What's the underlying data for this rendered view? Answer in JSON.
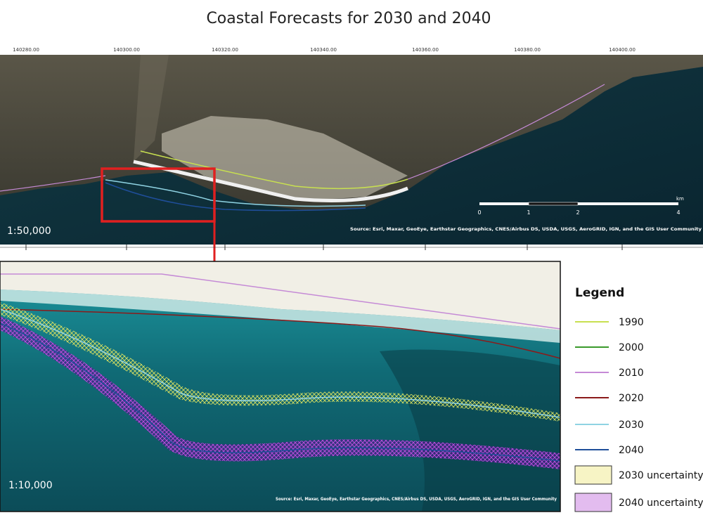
{
  "title": "Coastal Forecasts for 2030 and 2040",
  "overview_map": {
    "coordinate_labels": [
      "140280.00",
      "140300.00",
      "140320.00",
      "140340.00",
      "140360.00",
      "140380.00",
      "140400.00"
    ],
    "scale": "1:50,000",
    "scale_bar": {
      "labels": [
        "0",
        "1",
        "2",
        "4"
      ],
      "unit": "km"
    },
    "attribution": "Source: Esri, Maxar, GeoEye, Earthstar Geographics, CNES/Airbus DS, USDA, USGS, AeroGRID, IGN, and the GIS User Community"
  },
  "detail_map": {
    "scale": "1:10,000",
    "attribution": "Source: Esri, Maxar, GeoEye, Earthstar Geographics, CNES/Airbus DS, USDA, USGS, AeroGRID, IGN, and the GIS User Community"
  },
  "legend": {
    "title": "Legend",
    "items": [
      {
        "label": "1990",
        "color": "#c8e050",
        "symbol": "line"
      },
      {
        "label": "2000",
        "color": "#3a9a2a",
        "symbol": "line"
      },
      {
        "label": "2010",
        "color": "#c58ad6",
        "symbol": "line"
      },
      {
        "label": "2020",
        "color": "#8b1a1a",
        "symbol": "line"
      },
      {
        "label": "2030",
        "color": "#8fd3e3",
        "symbol": "line"
      },
      {
        "label": "2040",
        "color": "#1f4e9a",
        "symbol": "line"
      },
      {
        "label": "2030 uncertainty",
        "color": "#e8e05a",
        "symbol": "hatch"
      },
      {
        "label": "2040 uncertainty",
        "color": "#b040d0",
        "symbol": "hatch"
      }
    ]
  }
}
